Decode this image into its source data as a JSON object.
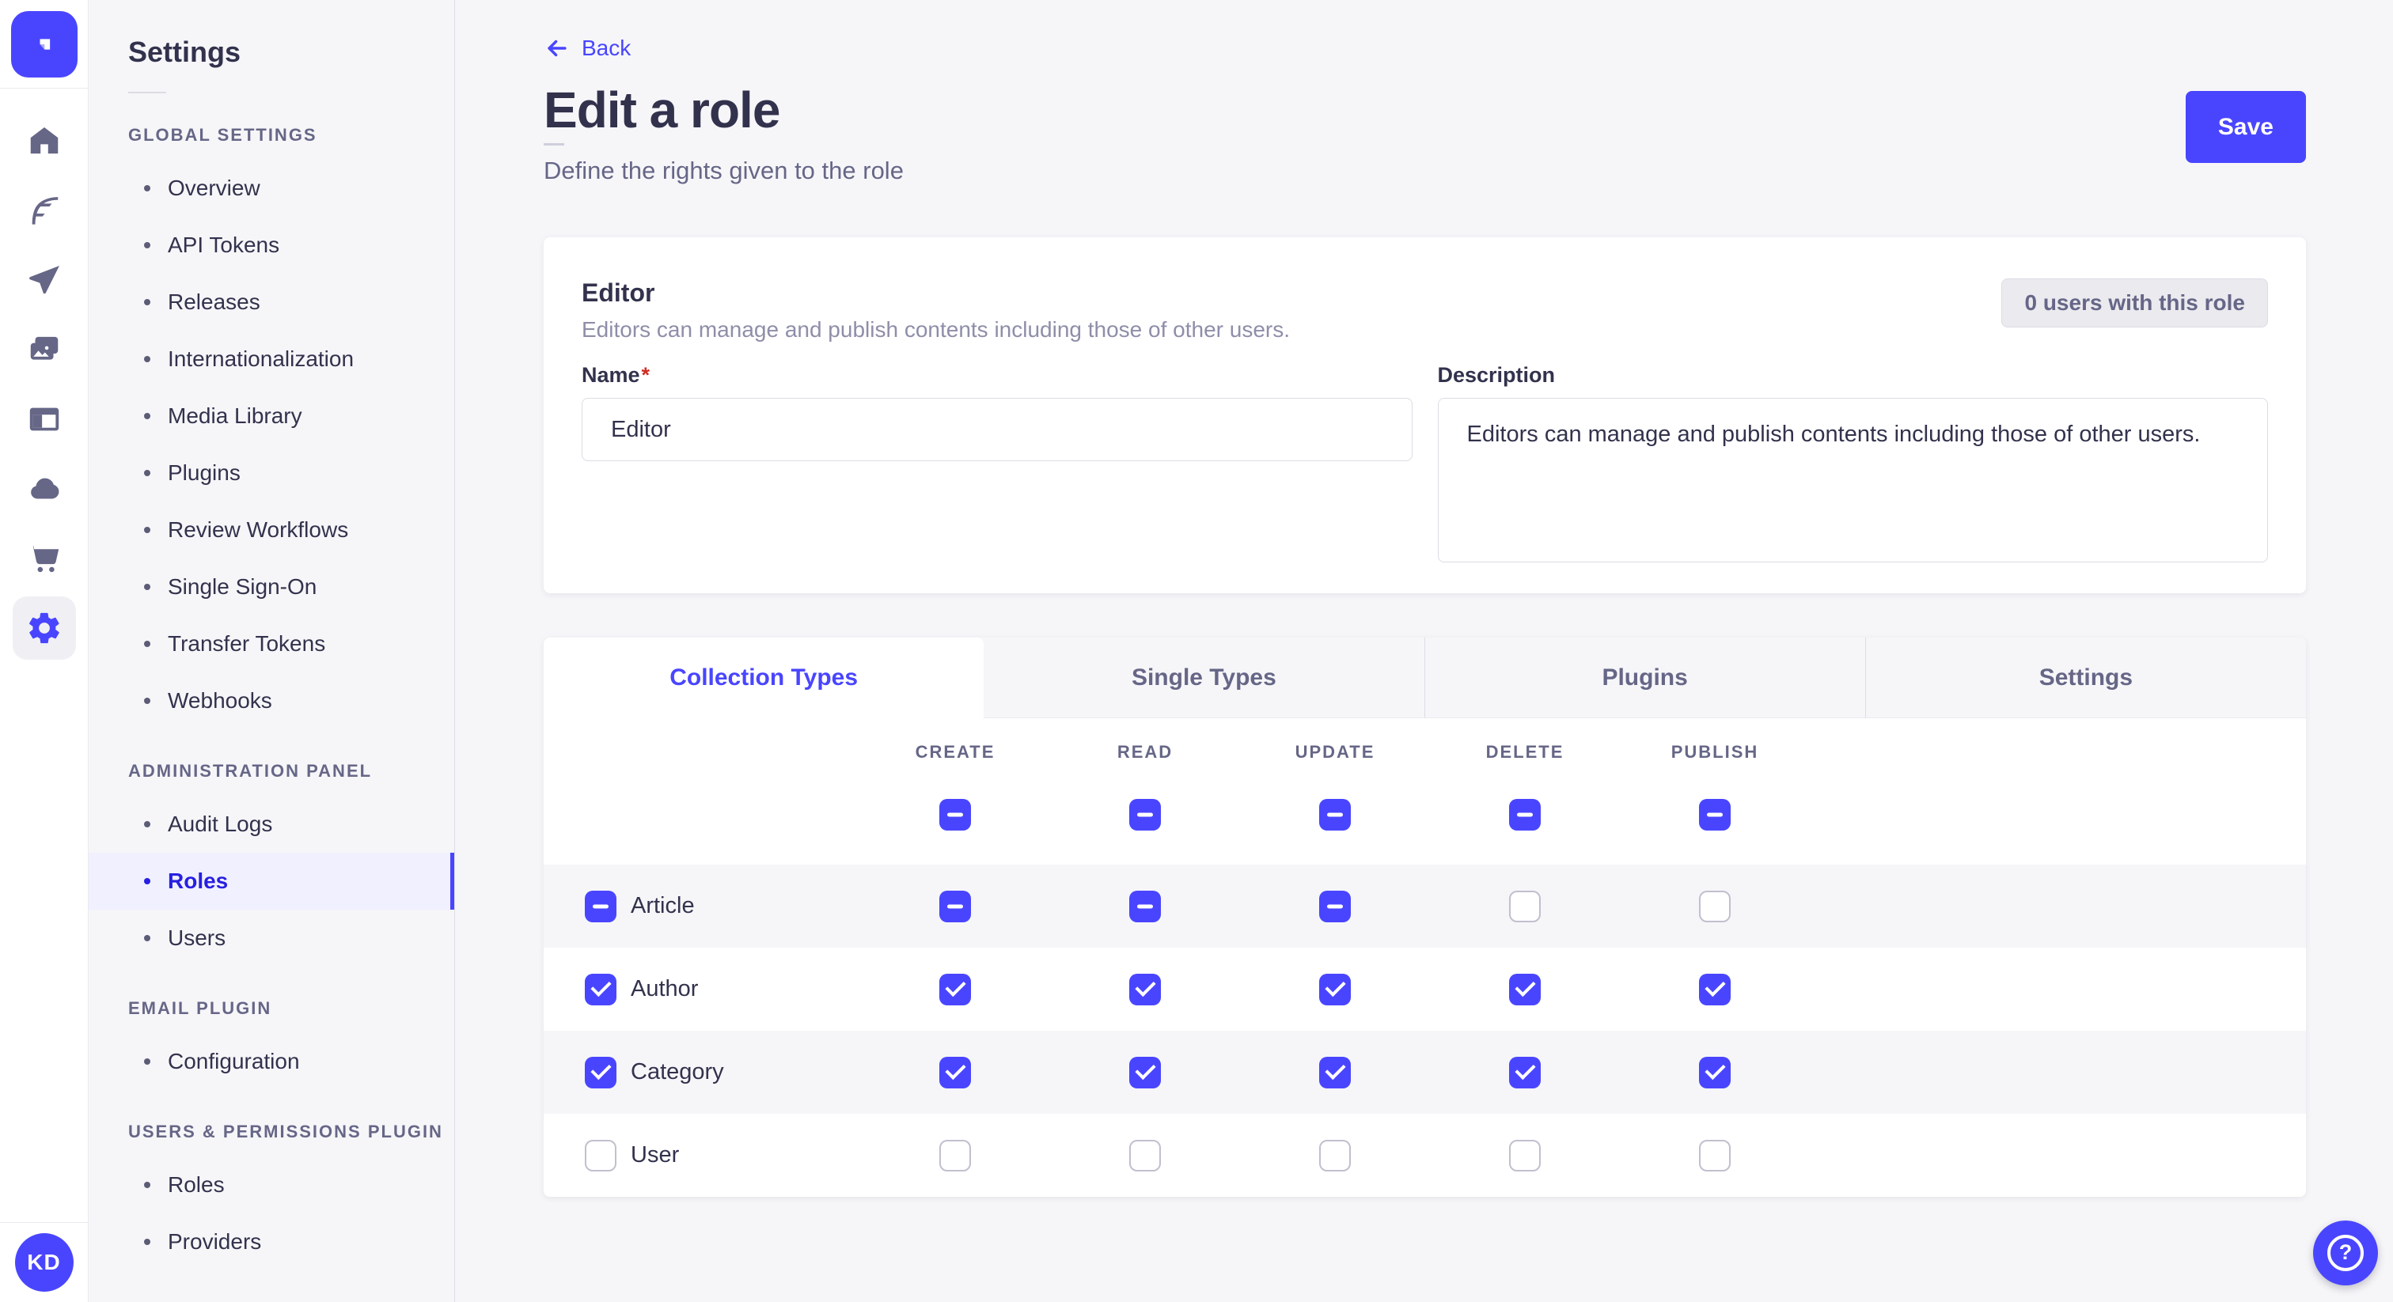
{
  "colors": {
    "primary": "#4945ff",
    "active_text": "#271fe0",
    "text": "#32324d",
    "muted": "#666687",
    "soft": "#8e8ea9",
    "border": "#dcdce4",
    "border_light": "#eaeaef",
    "bg": "#f6f6f9",
    "active_bg": "#f0f0ff",
    "rail_active_bg": "#f0f0f4",
    "unchecked_border": "#c0c0cf",
    "badge_bg": "#eaeaef",
    "danger": "#d02b20"
  },
  "icons": {
    "help_glyph": "?"
  },
  "user": {
    "initials": "KD"
  },
  "settings_nav": {
    "title": "Settings",
    "sections": [
      {
        "title": "GLOBAL SETTINGS",
        "items": [
          {
            "label": "Overview"
          },
          {
            "label": "API Tokens"
          },
          {
            "label": "Releases"
          },
          {
            "label": "Internationalization"
          },
          {
            "label": "Media Library"
          },
          {
            "label": "Plugins"
          },
          {
            "label": "Review Workflows"
          },
          {
            "label": "Single Sign-On"
          },
          {
            "label": "Transfer Tokens"
          },
          {
            "label": "Webhooks"
          }
        ]
      },
      {
        "title": "ADMINISTRATION PANEL",
        "items": [
          {
            "label": "Audit Logs"
          },
          {
            "label": "Roles",
            "active": true
          },
          {
            "label": "Users"
          }
        ]
      },
      {
        "title": "EMAIL PLUGIN",
        "items": [
          {
            "label": "Configuration"
          }
        ]
      },
      {
        "title": "USERS & PERMISSIONS PLUGIN",
        "items": [
          {
            "label": "Roles"
          },
          {
            "label": "Providers"
          }
        ]
      }
    ]
  },
  "header": {
    "back_label": "Back",
    "title": "Edit a role",
    "subtitle": "Define the rights given to the role",
    "save_label": "Save"
  },
  "role_card": {
    "title": "Editor",
    "summary": "Editors can manage and publish contents including those of other users.",
    "users_badge": "0 users with this role",
    "name_label": "Name",
    "name_required": "*",
    "name_value": "Editor",
    "description_label": "Description",
    "description_value": "Editors can manage and publish contents including those of other users."
  },
  "permissions": {
    "tabs": [
      {
        "label": "Collection Types",
        "active": true
      },
      {
        "label": "Single Types"
      },
      {
        "label": "Plugins"
      },
      {
        "label": "Settings"
      }
    ],
    "columns": [
      "CREATE",
      "READ",
      "UPDATE",
      "DELETE",
      "PUBLISH"
    ],
    "column_header_states": [
      "indeterminate",
      "indeterminate",
      "indeterminate",
      "indeterminate",
      "indeterminate"
    ],
    "rows": [
      {
        "label": "Article",
        "state": "indeterminate",
        "cells": [
          "indeterminate",
          "indeterminate",
          "indeterminate",
          "unchecked",
          "unchecked"
        ]
      },
      {
        "label": "Author",
        "state": "checked",
        "cells": [
          "checked",
          "checked",
          "checked",
          "checked",
          "checked"
        ]
      },
      {
        "label": "Category",
        "state": "checked",
        "cells": [
          "checked",
          "checked",
          "checked",
          "checked",
          "checked"
        ]
      },
      {
        "label": "User",
        "state": "unchecked",
        "cells": [
          "unchecked",
          "unchecked",
          "unchecked",
          "unchecked",
          "unchecked"
        ]
      }
    ]
  }
}
